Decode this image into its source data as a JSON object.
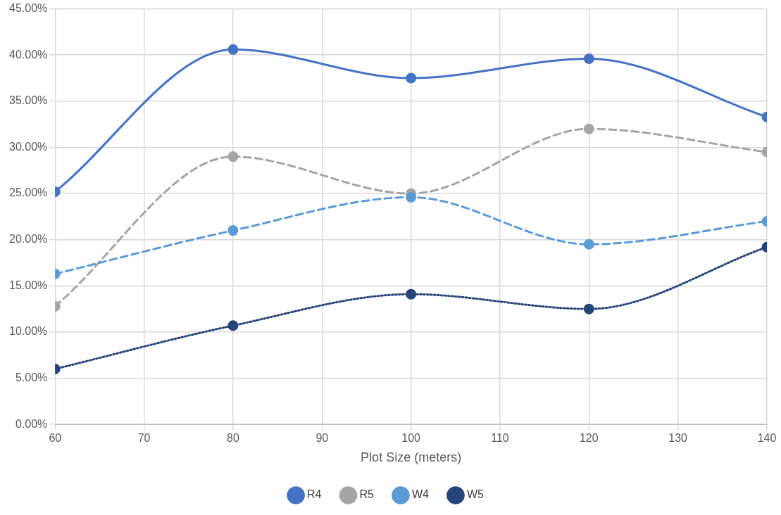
{
  "chart_data": {
    "type": "line",
    "xlabel": "Plot Size (meters)",
    "x": [
      60,
      80,
      100,
      120,
      140
    ],
    "series": [
      {
        "name": "R4",
        "color": "#4472c4",
        "line_style": "solid",
        "values": [
          25.2,
          40.6,
          37.5,
          39.6,
          33.3
        ]
      },
      {
        "name": "R5",
        "color": "#a5a5a5",
        "line_style": "dashed",
        "values": [
          12.8,
          29.0,
          25.0,
          32.0,
          29.5
        ]
      },
      {
        "name": "W4",
        "color": "#5b9bd5",
        "line_style": "dashed",
        "values": [
          16.3,
          21.0,
          24.6,
          19.5,
          22.0
        ]
      },
      {
        "name": "W5",
        "color": "#264478",
        "line_style": "dotted",
        "values": [
          6.0,
          10.7,
          14.1,
          12.5,
          19.2
        ]
      }
    ],
    "xlim": [
      60,
      140
    ],
    "xticks": [
      60,
      70,
      80,
      90,
      100,
      110,
      120,
      130,
      140
    ],
    "ylim": [
      0,
      45
    ],
    "yticks": [
      {
        "value": 0,
        "label": "0.00%"
      },
      {
        "value": 5,
        "label": "5.00%"
      },
      {
        "value": 10,
        "label": "10.00%"
      },
      {
        "value": 15,
        "label": "15.00%"
      },
      {
        "value": 20,
        "label": "20.00%"
      },
      {
        "value": 25,
        "label": "25.00%"
      },
      {
        "value": 30,
        "label": "30.00%"
      },
      {
        "value": 35,
        "label": "35.00%"
      },
      {
        "value": 40,
        "label": "40.00%"
      },
      {
        "value": 45,
        "label": "45.00%"
      }
    ],
    "grid": true,
    "legend": "bottom",
    "marker": "circle"
  }
}
